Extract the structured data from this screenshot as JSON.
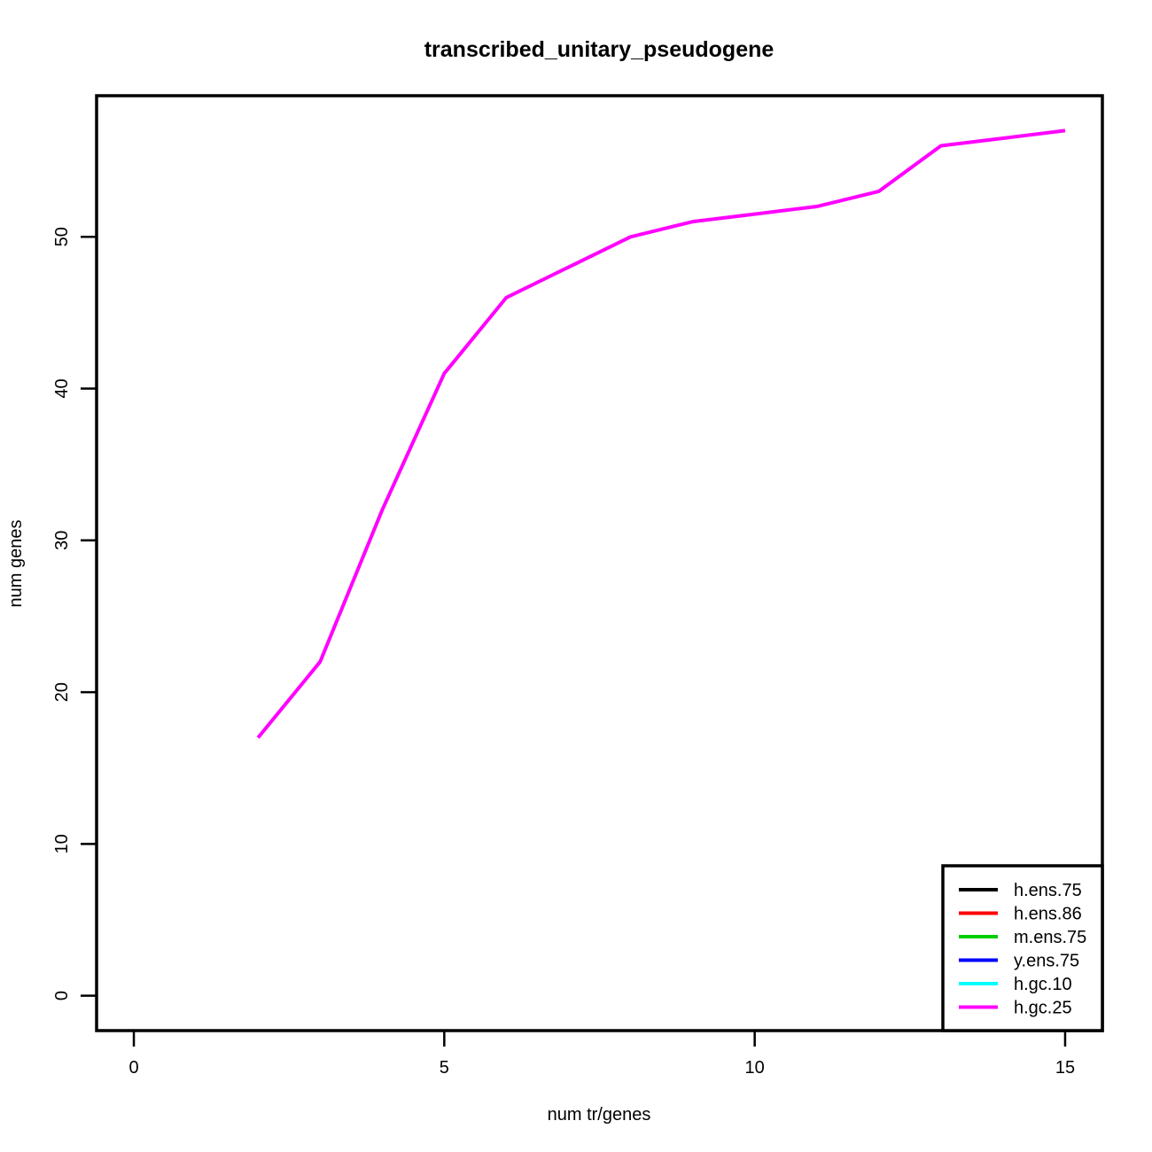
{
  "chart_data": {
    "type": "line",
    "title": "transcribed_unitary_pseudogene",
    "xlabel": "num tr/genes",
    "ylabel": "num genes",
    "xlim": [
      -0.6,
      15.6
    ],
    "ylim": [
      -2.3,
      59.3
    ],
    "xticks": [
      0,
      5,
      10,
      15
    ],
    "yticks": [
      0,
      10,
      20,
      30,
      40,
      50
    ],
    "xtick_labels": [
      "0",
      "5",
      "10",
      "15"
    ],
    "ytick_labels": [
      "0",
      "10",
      "20",
      "30",
      "40",
      "50"
    ],
    "grid": false,
    "legend_position": "bottom-right",
    "series": [
      {
        "name": "h.ens.75",
        "color": "#000000",
        "x": [],
        "y": []
      },
      {
        "name": "h.ens.86",
        "color": "#ff0000",
        "x": [],
        "y": []
      },
      {
        "name": "m.ens.75",
        "color": "#00cd00",
        "x": [],
        "y": []
      },
      {
        "name": "y.ens.75",
        "color": "#0000ff",
        "x": [],
        "y": []
      },
      {
        "name": "h.gc.10",
        "color": "#00ffff",
        "x": [],
        "y": []
      },
      {
        "name": "h.gc.25",
        "color": "#ff00ff",
        "x": [
          2,
          3,
          4,
          5,
          6,
          7,
          8,
          9,
          10,
          11,
          12,
          13,
          14,
          15
        ],
        "y": [
          17,
          22,
          32,
          41,
          46,
          48,
          50,
          51,
          51.5,
          52,
          53,
          56,
          56.5,
          57
        ]
      }
    ]
  }
}
